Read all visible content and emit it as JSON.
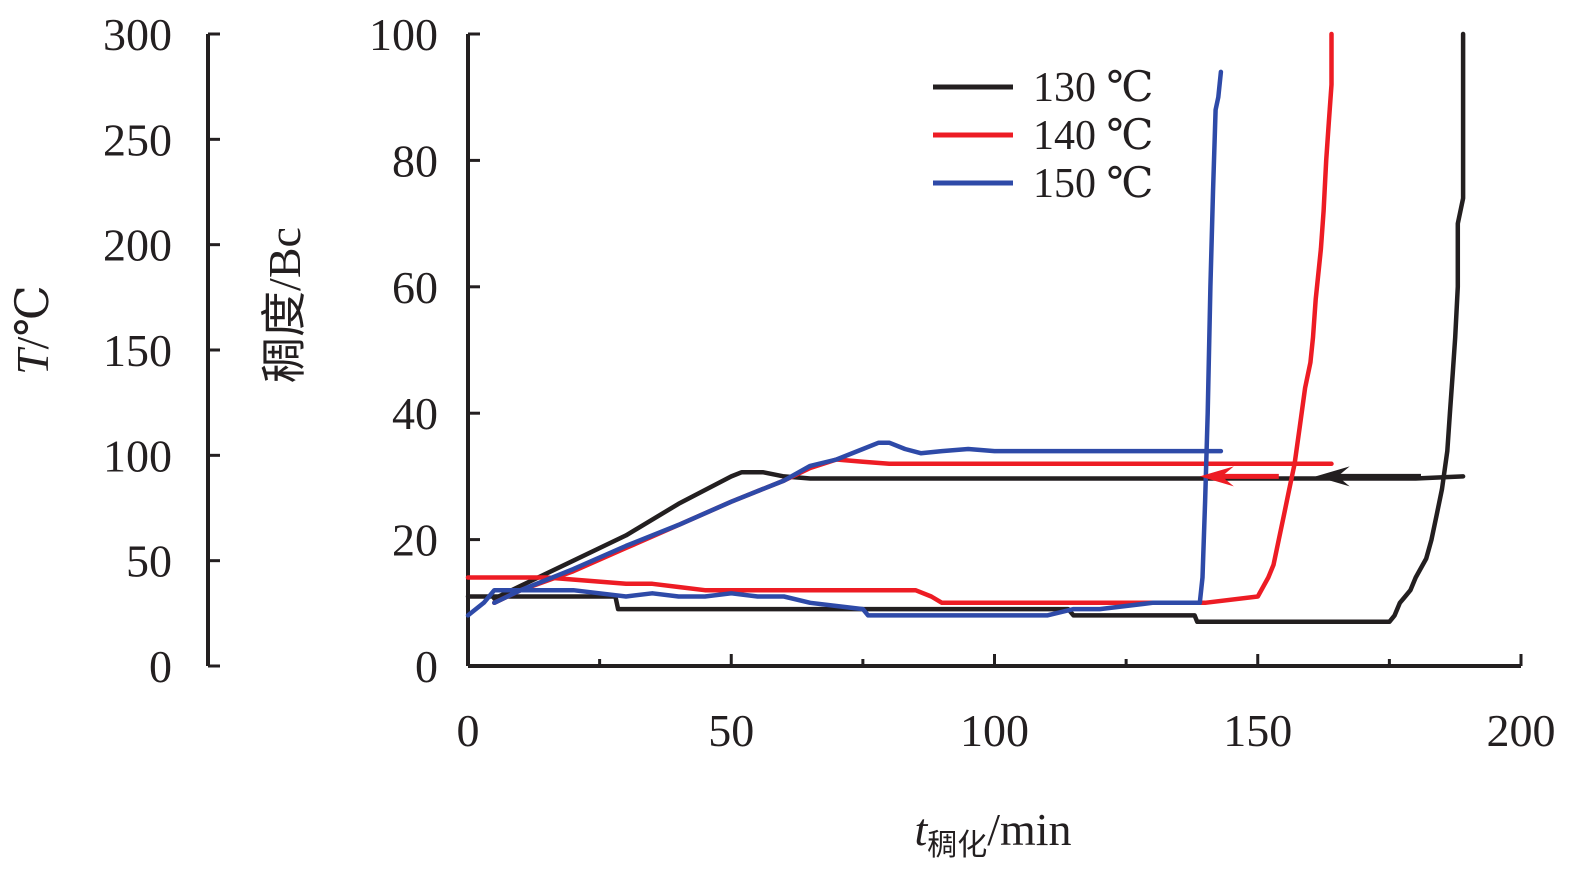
{
  "chart_data": {
    "type": "line",
    "title": "",
    "xlabel": {
      "main": "t",
      "sub": "稠化",
      "unit": "/min"
    },
    "ylabel_left": {
      "main": "T",
      "unit": "/℃"
    },
    "ylabel_right": "稠度/Bc",
    "xlim": [
      0,
      200
    ],
    "x_ticks": [
      0,
      50,
      100,
      150,
      200
    ],
    "ylim_temperature": [
      0,
      300
    ],
    "temperature_ticks": [
      0,
      50,
      100,
      150,
      200,
      250,
      300
    ],
    "ylim_consistency": [
      0,
      100
    ],
    "consistency_ticks": [
      0,
      20,
      40,
      60,
      80,
      100
    ],
    "grid": false,
    "legend_position": "top-right",
    "series": [
      {
        "name": "130 ℃",
        "color": "#231f20",
        "temperature": {
          "x": [
            5,
            10,
            20,
            30,
            40,
            50,
            52,
            56,
            60,
            65,
            80,
            100,
            140,
            180,
            189
          ],
          "y": [
            32,
            38,
            50,
            62,
            77,
            90,
            92,
            92,
            90,
            89,
            89,
            89,
            89,
            89,
            90
          ]
        },
        "consistency": {
          "x": [
            0,
            5,
            10,
            20,
            28,
            28.5,
            60,
            110,
            114,
            115,
            138,
            138.5,
            165,
            175,
            176,
            177,
            178,
            179,
            180,
            182,
            183,
            184,
            185,
            186,
            186.5,
            187,
            187.5,
            188,
            188,
            189,
            189
          ],
          "y": [
            11,
            11,
            11,
            11,
            11,
            9,
            9,
            9,
            9,
            8,
            8,
            7,
            7,
            7,
            8,
            10,
            11,
            12,
            14,
            17,
            20,
            24,
            28,
            34,
            40,
            46,
            52,
            60,
            70,
            74,
            100
          ]
        }
      },
      {
        "name": "140 ℃",
        "color": "#ed1c24",
        "temperature": {
          "x": [
            5,
            10,
            20,
            30,
            40,
            50,
            60,
            65,
            70,
            75,
            80,
            100,
            140,
            164
          ],
          "y": [
            30,
            36,
            45,
            56,
            67,
            78,
            88,
            94,
            98,
            97,
            96,
            96,
            96,
            96
          ]
        },
        "consistency": {
          "x": [
            0,
            5,
            15,
            30,
            35,
            40,
            45,
            60,
            70,
            75,
            76,
            85,
            88,
            90,
            100,
            110,
            118,
            120,
            135,
            140,
            150,
            152,
            153,
            154,
            155,
            156,
            157,
            158,
            159,
            160,
            160.5,
            161,
            162,
            162.5,
            163,
            163.5,
            164,
            164
          ],
          "y": [
            14,
            14,
            14,
            13,
            13,
            12.5,
            12,
            12,
            12,
            12,
            12,
            12,
            11,
            10,
            10,
            10,
            10,
            10,
            10,
            10,
            11,
            14,
            16,
            20,
            24,
            28,
            32,
            38,
            44,
            48,
            52,
            58,
            66,
            72,
            80,
            86,
            92,
            100
          ]
        }
      },
      {
        "name": "150 ℃",
        "color": "#2e4aa8",
        "temperature": {
          "x": [
            5,
            10,
            20,
            30,
            40,
            50,
            60,
            65,
            70,
            75,
            78,
            80,
            83,
            86,
            90,
            95,
            100,
            120,
            143
          ],
          "y": [
            30,
            36,
            46,
            57,
            67,
            78,
            88,
            95,
            98,
            103,
            106,
            106,
            103,
            101,
            102,
            103,
            102,
            102,
            102
          ]
        },
        "consistency": {
          "x": [
            0,
            3,
            5,
            10,
            15,
            20,
            25,
            30,
            35,
            40,
            45,
            50,
            55,
            60,
            65,
            70,
            75,
            76,
            80,
            90,
            100,
            110,
            115,
            120,
            130,
            138,
            139,
            139.5,
            140,
            140.5,
            141,
            141.5,
            142,
            142.5,
            143
          ],
          "y": [
            8,
            10,
            12,
            12,
            12,
            12,
            11.5,
            11,
            11.5,
            11,
            11,
            11.5,
            11,
            11,
            10,
            9.5,
            9,
            8,
            8,
            8,
            8,
            8,
            9,
            9,
            10,
            10,
            10,
            14,
            26,
            40,
            60,
            75,
            88,
            90,
            94
          ]
        }
      }
    ],
    "annotations": [
      {
        "type": "arrow",
        "color": "#ed1c24",
        "from": [
          154,
          30
        ],
        "to": [
          139,
          30
        ]
      },
      {
        "type": "arrow",
        "color": "#231f20",
        "from": [
          181,
          30
        ],
        "to": [
          161,
          30
        ]
      }
    ]
  }
}
